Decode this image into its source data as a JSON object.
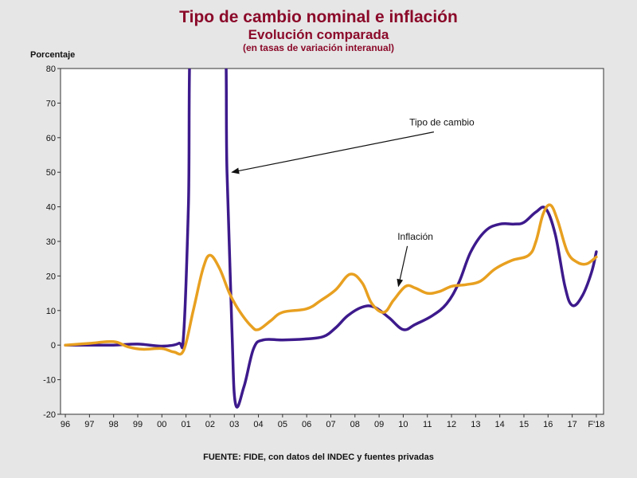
{
  "chart_data": {
    "type": "line",
    "title": "Tipo de cambio nominal e inflación",
    "subtitle": "Evolución comparada",
    "subtitle2": "(en tasas de variación interanual)",
    "ylabel": "Porcentaje",
    "source": "FUENTE: FIDE, con datos del INDEC y fuentes privadas",
    "ylim": [
      -20,
      80
    ],
    "yticks": [
      80,
      70,
      60,
      50,
      40,
      30,
      20,
      10,
      0,
      -10,
      -20
    ],
    "xlim": [
      1995.8,
      2018.3
    ],
    "x_ticks": [
      {
        "label": "96",
        "x": 1996
      },
      {
        "label": "97",
        "x": 1997
      },
      {
        "label": "98",
        "x": 1998
      },
      {
        "label": "99",
        "x": 1999
      },
      {
        "label": "00",
        "x": 2000
      },
      {
        "label": "01",
        "x": 2001
      },
      {
        "label": "02",
        "x": 2002
      },
      {
        "label": "03",
        "x": 2003
      },
      {
        "label": "04",
        "x": 2004
      },
      {
        "label": "05",
        "x": 2005
      },
      {
        "label": "06",
        "x": 2006
      },
      {
        "label": "07",
        "x": 2007
      },
      {
        "label": "08",
        "x": 2008
      },
      {
        "label": "09",
        "x": 2009
      },
      {
        "label": "10",
        "x": 2010
      },
      {
        "label": "11",
        "x": 2011
      },
      {
        "label": "12",
        "x": 2012
      },
      {
        "label": "13",
        "x": 2013
      },
      {
        "label": "14",
        "x": 2014
      },
      {
        "label": "15",
        "x": 2015
      },
      {
        "label": "16",
        "x": 2016
      },
      {
        "label": "17",
        "x": 2017
      },
      {
        "label": "F'18",
        "x": 2018
      }
    ],
    "series": [
      {
        "name": "Tipo de cambio",
        "color": "#3d1a8c",
        "points": [
          [
            1996.0,
            0
          ],
          [
            1997.0,
            0
          ],
          [
            1998.0,
            0
          ],
          [
            1999.0,
            0.3
          ],
          [
            2000.0,
            -0.3
          ],
          [
            2000.7,
            0.5
          ],
          [
            2000.9,
            3
          ],
          [
            2001.1,
            40
          ],
          [
            2001.3,
            100
          ],
          [
            2002.5,
            100
          ],
          [
            2002.7,
            50
          ],
          [
            2002.9,
            5
          ],
          [
            2003.05,
            -17
          ],
          [
            2003.4,
            -12
          ],
          [
            2003.8,
            -1
          ],
          [
            2004.2,
            1.5
          ],
          [
            2005.0,
            1.5
          ],
          [
            2006.0,
            1.8
          ],
          [
            2006.7,
            2.5
          ],
          [
            2007.2,
            5
          ],
          [
            2007.7,
            8.5
          ],
          [
            2008.3,
            11
          ],
          [
            2008.8,
            11
          ],
          [
            2009.4,
            8
          ],
          [
            2010.0,
            4.5
          ],
          [
            2010.5,
            6
          ],
          [
            2011.2,
            8.5
          ],
          [
            2011.8,
            12
          ],
          [
            2012.3,
            18
          ],
          [
            2012.8,
            27
          ],
          [
            2013.4,
            33
          ],
          [
            2014.0,
            35
          ],
          [
            2014.6,
            35
          ],
          [
            2015.0,
            35.5
          ],
          [
            2015.5,
            38.5
          ],
          [
            2015.9,
            39.5
          ],
          [
            2016.3,
            32
          ],
          [
            2016.7,
            17
          ],
          [
            2017.0,
            11.5
          ],
          [
            2017.4,
            14
          ],
          [
            2017.8,
            21
          ],
          [
            2018.0,
            27
          ]
        ]
      },
      {
        "name": "Inflación",
        "color": "#e8a020",
        "points": [
          [
            1996.0,
            0
          ],
          [
            1997.0,
            0.5
          ],
          [
            1998.0,
            1
          ],
          [
            1998.6,
            -0.5
          ],
          [
            1999.2,
            -1.2
          ],
          [
            2000.0,
            -1
          ],
          [
            2000.5,
            -2
          ],
          [
            2000.9,
            -1.5
          ],
          [
            2001.3,
            10
          ],
          [
            2001.7,
            22
          ],
          [
            2002.0,
            26
          ],
          [
            2002.4,
            22
          ],
          [
            2002.8,
            15
          ],
          [
            2003.2,
            10
          ],
          [
            2003.7,
            5.5
          ],
          [
            2004.0,
            4.5
          ],
          [
            2004.5,
            7
          ],
          [
            2005.0,
            9.5
          ],
          [
            2006.0,
            10.5
          ],
          [
            2006.6,
            13
          ],
          [
            2007.2,
            16
          ],
          [
            2007.8,
            20.5
          ],
          [
            2008.3,
            18
          ],
          [
            2008.7,
            12
          ],
          [
            2009.2,
            9.5
          ],
          [
            2009.6,
            13
          ],
          [
            2010.1,
            17
          ],
          [
            2010.5,
            16.5
          ],
          [
            2011.0,
            15
          ],
          [
            2011.5,
            15.5
          ],
          [
            2012.0,
            17
          ],
          [
            2012.6,
            17.5
          ],
          [
            2013.2,
            18.5
          ],
          [
            2013.8,
            22
          ],
          [
            2014.5,
            24.5
          ],
          [
            2015.2,
            26
          ],
          [
            2015.5,
            30
          ],
          [
            2015.8,
            38
          ],
          [
            2016.1,
            40.5
          ],
          [
            2016.4,
            36
          ],
          [
            2016.8,
            27
          ],
          [
            2017.2,
            24
          ],
          [
            2017.6,
            23.5
          ],
          [
            2018.0,
            25.5
          ]
        ]
      }
    ],
    "annotations": [
      {
        "text": "Tipo de cambio",
        "series": "Tipo de cambio",
        "label_at": [
          2011.6,
          63.5
        ],
        "point_at": [
          2002.9,
          50
        ]
      },
      {
        "text": "Inflación",
        "series": "Inflación",
        "label_at": [
          2010.5,
          30.5
        ],
        "point_at": [
          2009.8,
          17
        ]
      }
    ]
  }
}
